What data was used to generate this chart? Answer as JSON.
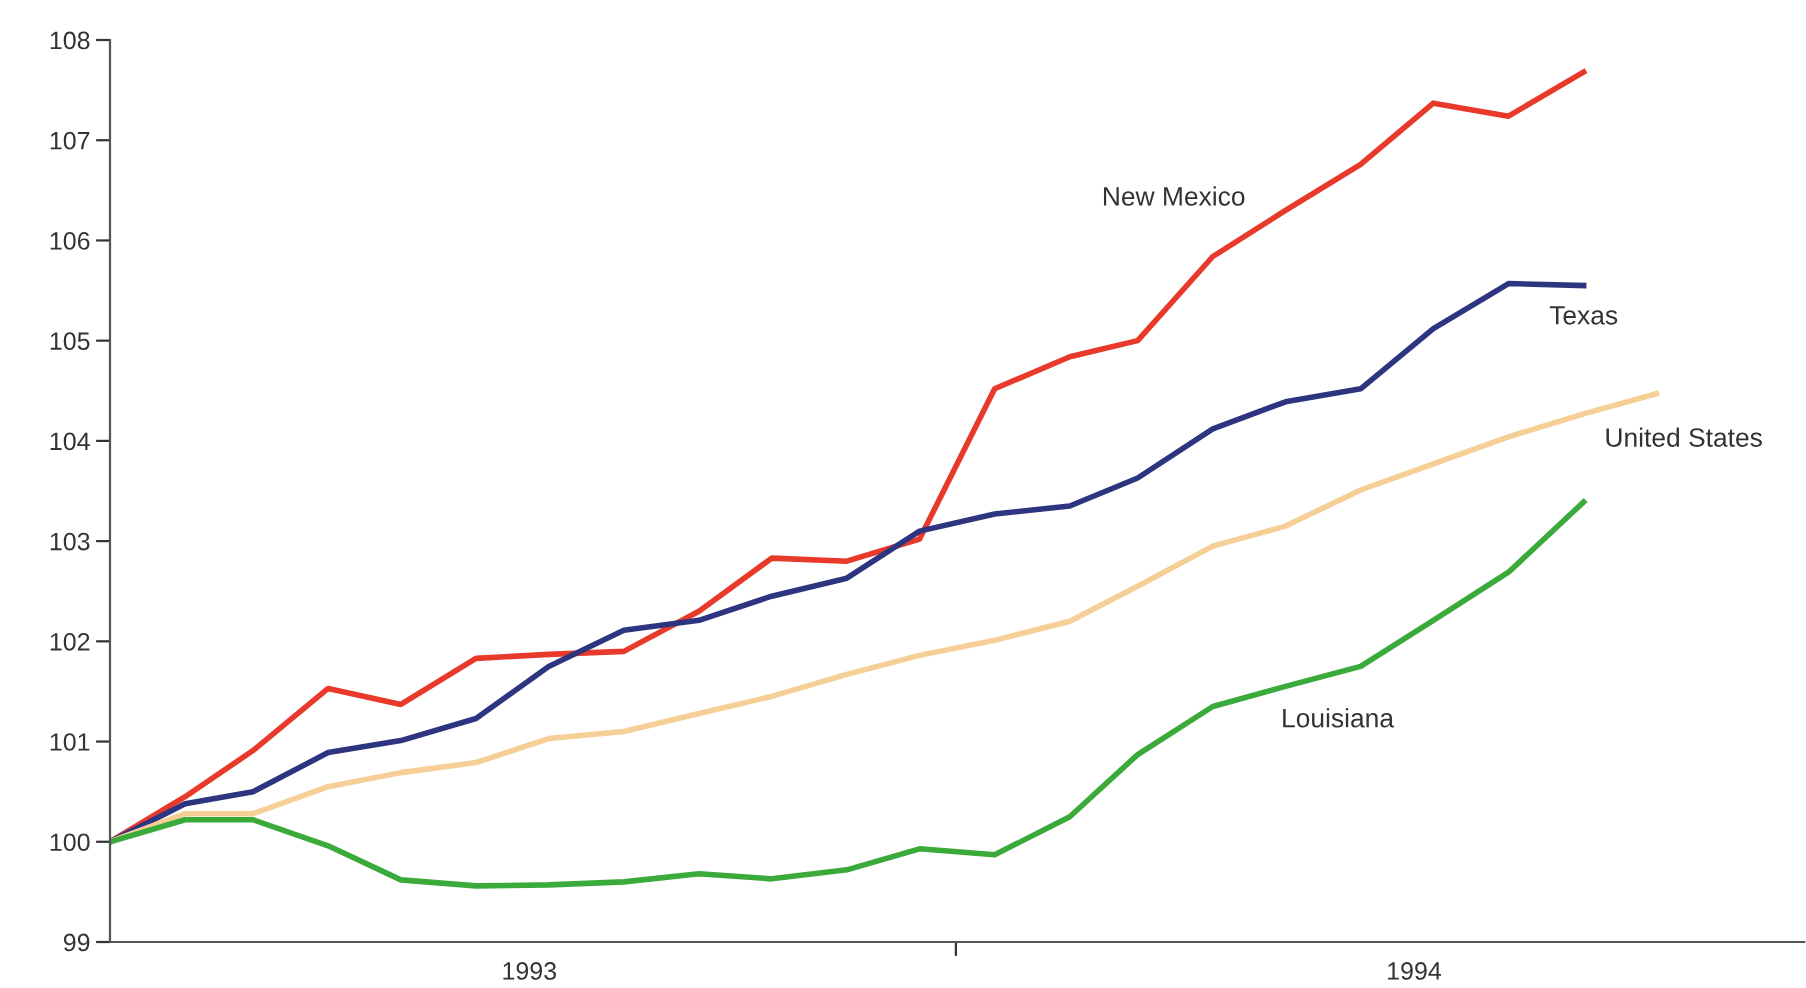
{
  "chart_data": {
    "type": "line",
    "x": [
      "1993-01",
      "1993-02",
      "1993-03",
      "1993-04",
      "1993-05",
      "1993-06",
      "1993-07",
      "1993-08",
      "1993-09",
      "1993-10",
      "1993-11",
      "1993-12",
      "1994-01",
      "1994-02",
      "1994-03",
      "1994-04",
      "1994-05",
      "1994-06",
      "1994-07",
      "1994-08",
      "1994-09",
      "1994-10"
    ],
    "xlim": [
      "1993-01",
      "1994-12"
    ],
    "xticks": [
      {
        "value": "1993-06-23",
        "label": "1993"
      },
      {
        "value": "1993-12-16",
        "label": null
      },
      {
        "value": "1994-06-23",
        "label": "1994"
      }
    ],
    "ylim": [
      99,
      108
    ],
    "yticks": [
      99,
      100,
      101,
      102,
      103,
      104,
      105,
      106,
      107,
      108
    ],
    "grid": false,
    "legend": false,
    "marker": "none",
    "line_style": "solid",
    "series": [
      {
        "name": "New Mexico",
        "color": "#e8392a",
        "values": [
          100,
          100.45,
          100.91,
          101.53,
          101.37,
          101.83,
          101.87,
          101.9,
          102.3,
          102.83,
          102.8,
          103.02,
          104.52,
          104.84,
          105.0,
          105.84,
          106.3,
          106.76,
          107.37,
          107.24,
          107.68,
          null
        ]
      },
      {
        "name": "Texas",
        "color": "#2e3580",
        "values": [
          100,
          100.38,
          100.5,
          100.89,
          101.01,
          101.23,
          101.75,
          102.11,
          102.21,
          102.45,
          102.63,
          103.1,
          103.27,
          103.35,
          103.63,
          104.12,
          104.39,
          104.52,
          105.12,
          105.57,
          105.55,
          null
        ]
      },
      {
        "name": "United States",
        "color": "#f5cf96",
        "values": [
          100,
          100.28,
          100.28,
          100.55,
          100.69,
          100.79,
          101.03,
          101.1,
          101.28,
          101.45,
          101.67,
          101.86,
          102.01,
          102.2,
          102.55,
          102.95,
          103.15,
          103.51,
          103.77,
          104.04,
          104.27,
          104.47
        ]
      },
      {
        "name": "Louisiana",
        "color": "#3aaa3a",
        "values": [
          100,
          100.22,
          100.22,
          99.96,
          99.62,
          99.56,
          99.57,
          99.6,
          99.68,
          99.63,
          99.72,
          99.93,
          99.87,
          100.25,
          100.87,
          101.35,
          101.55,
          101.75,
          102.21,
          102.69,
          103.39,
          null
        ]
      }
    ]
  }
}
